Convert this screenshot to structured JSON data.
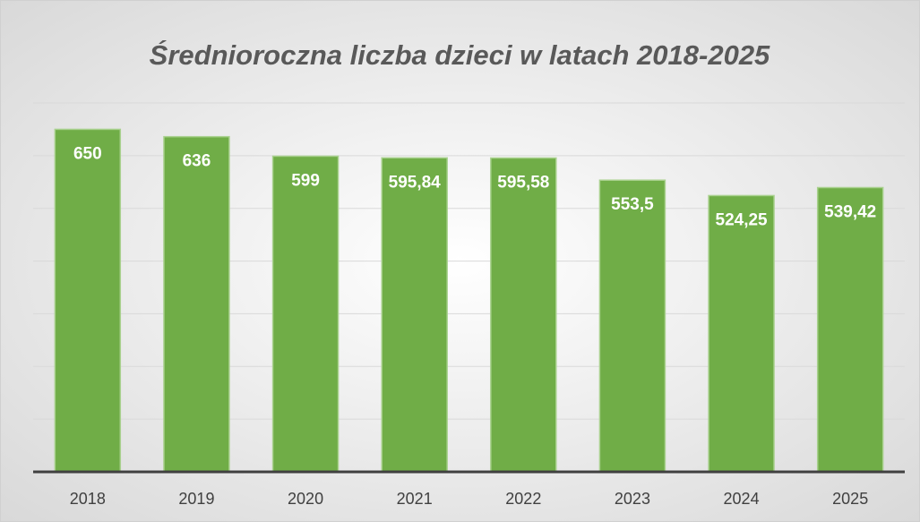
{
  "chart_data": {
    "type": "bar",
    "title": "Średnioroczna liczba dzieci w latach 2018-2025",
    "categories": [
      "2018",
      "2019",
      "2020",
      "2021",
      "2022",
      "2023",
      "2024",
      "2025"
    ],
    "values": [
      650,
      636,
      599,
      595.84,
      595.58,
      553.5,
      524.25,
      539.42
    ],
    "value_labels": [
      "650",
      "636",
      "599",
      "595,84",
      "595,58",
      "553,5",
      "524,25",
      "539,42"
    ],
    "color": "#70ad47",
    "ylim": [
      0,
      700
    ],
    "yticks": [
      0,
      100,
      200,
      300,
      400,
      500,
      600,
      700
    ],
    "grid": true
  }
}
